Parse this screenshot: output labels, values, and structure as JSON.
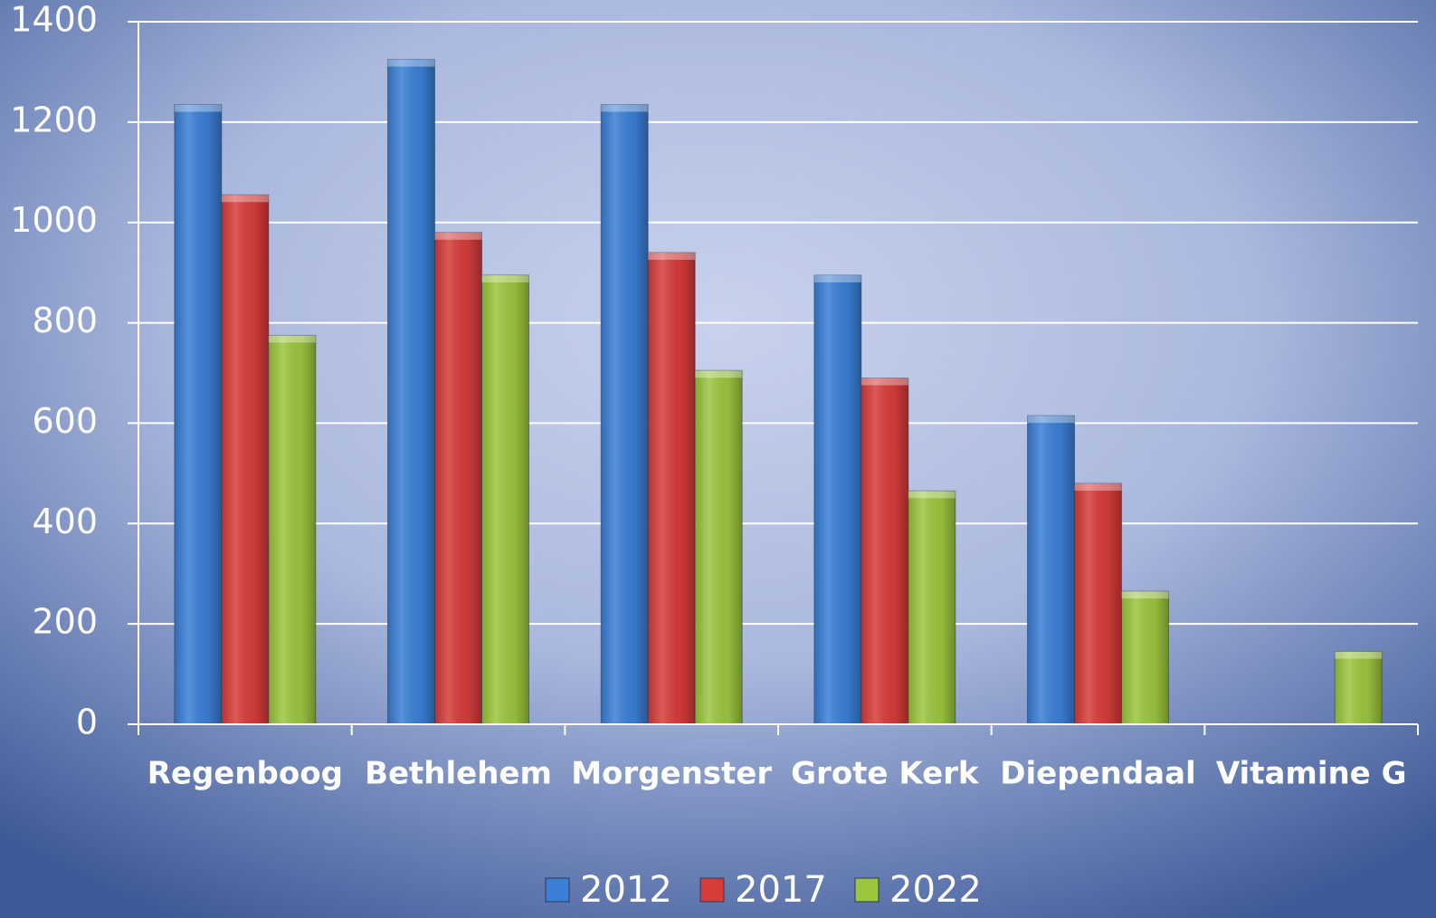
{
  "chart_data": {
    "type": "bar",
    "categories": [
      "Regenboog",
      "Bethlehem",
      "Morgenster",
      "Grote Kerk",
      "Diependaal",
      "Vitamine G"
    ],
    "series": [
      {
        "name": "2012",
        "color": "#3b7fd6",
        "values": [
          1235,
          1325,
          1235,
          895,
          615,
          null
        ]
      },
      {
        "name": "2017",
        "color": "#d63c3a",
        "values": [
          1055,
          980,
          940,
          690,
          480,
          null
        ]
      },
      {
        "name": "2022",
        "color": "#9cc63e",
        "values": [
          775,
          895,
          705,
          465,
          265,
          145
        ]
      }
    ],
    "ylim": [
      0,
      1400
    ],
    "yticks": [
      0,
      200,
      400,
      600,
      800,
      1000,
      1200,
      1400
    ],
    "grid": true,
    "legend": "bottom"
  }
}
